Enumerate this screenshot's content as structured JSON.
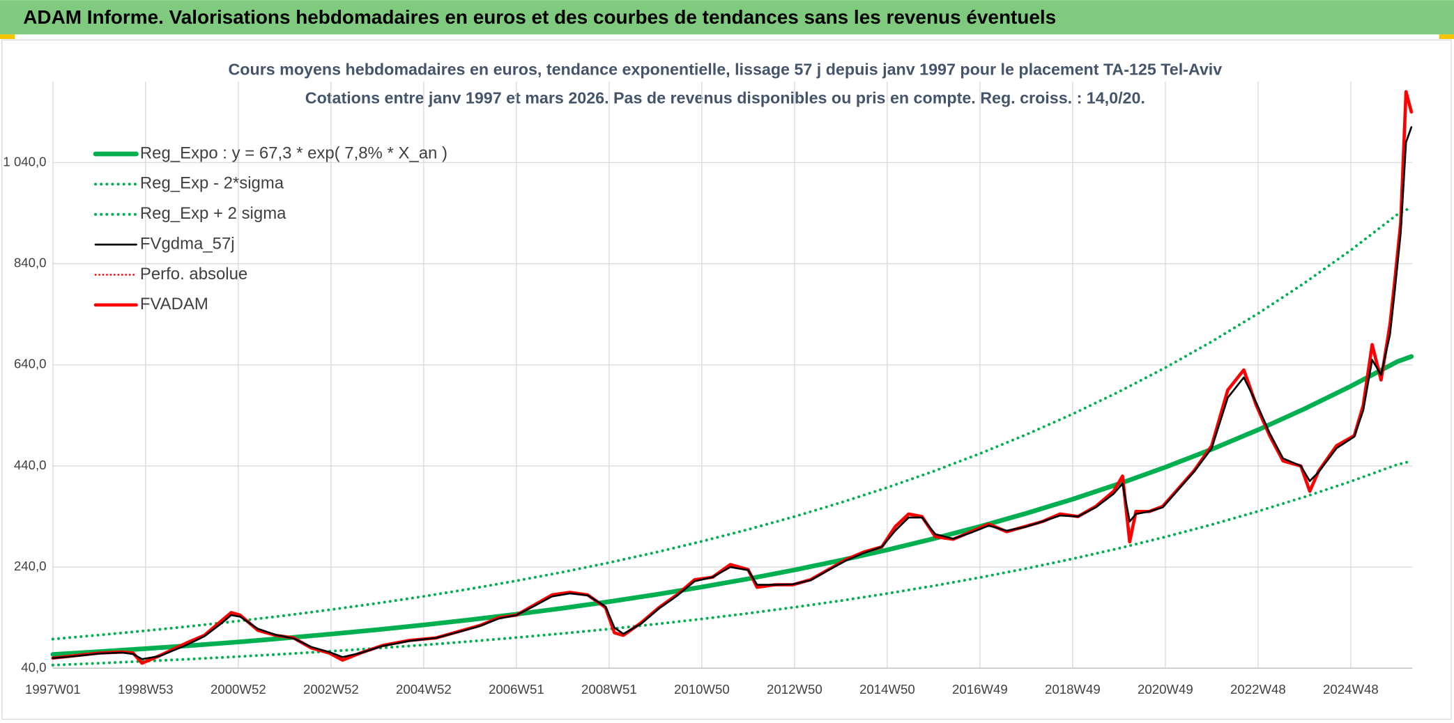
{
  "title": "ADAM Informe. Valorisations hebdomadaires en euros et des courbes de tendances sans les revenus éventuels",
  "chart_data": {
    "type": "line",
    "title": "Cours moyens hebdomadaires en euros, tendance exponentielle, lissage 57 j depuis janv 1997 pour le placement TA-125 Tel-Aviv",
    "subtitle": "Cotations entre janv 1997 et mars 2026. Pas de revenus disponibles ou pris en compte. Reg. croiss. : 14,0/20.",
    "xlim": [
      0,
      1525
    ],
    "xticks": [
      {
        "value": 0,
        "label": "1997W01"
      },
      {
        "value": 104,
        "label": "1998W53"
      },
      {
        "value": 208,
        "label": "2000W52"
      },
      {
        "value": 312,
        "label": "2002W52"
      },
      {
        "value": 416,
        "label": "2004W52"
      },
      {
        "value": 520,
        "label": "2006W51"
      },
      {
        "value": 624,
        "label": "2008W51"
      },
      {
        "value": 728,
        "label": "2010W50"
      },
      {
        "value": 832,
        "label": "2012W50"
      },
      {
        "value": 936,
        "label": "2014W50"
      },
      {
        "value": 1040,
        "label": "2016W49"
      },
      {
        "value": 1144,
        "label": "2018W49"
      },
      {
        "value": 1248,
        "label": "2020W49"
      },
      {
        "value": 1352,
        "label": "2022W48"
      },
      {
        "value": 1456,
        "label": "2024W48"
      }
    ],
    "ylim": [
      40,
      1200
    ],
    "yticks": [
      {
        "value": 40,
        "label": "40,0"
      },
      {
        "value": 240,
        "label": "240,0"
      },
      {
        "value": 440,
        "label": "440,0"
      },
      {
        "value": 640,
        "label": "640,0"
      },
      {
        "value": 840,
        "label": "840,0"
      },
      {
        "value": 1040,
        "label": "1 040,0"
      }
    ],
    "grid": true,
    "legend": "upper left",
    "series": [
      {
        "name": "Reg_Expo : y = 67,3 * exp( 7,8% *  X_an )",
        "color": "#00b050",
        "style": "solid",
        "width": 5,
        "x": [
          0,
          52,
          104,
          156,
          208,
          260,
          312,
          364,
          416,
          468,
          520,
          572,
          624,
          676,
          728,
          780,
          832,
          884,
          936,
          988,
          1040,
          1092,
          1144,
          1196,
          1248,
          1300,
          1352,
          1404,
          1456,
          1508,
          1524
        ],
        "values": [
          67.3,
          72.8,
          78.7,
          85.0,
          91.9,
          99.4,
          107.5,
          116.2,
          125.6,
          135.8,
          146.8,
          158.7,
          171.6,
          185.5,
          200.6,
          216.8,
          234.4,
          253.5,
          274.0,
          296.2,
          320.3,
          346.3,
          374.3,
          404.7,
          437.5,
          473.0,
          511.4,
          552.9,
          597.7,
          646.2,
          656.4
        ]
      },
      {
        "name": "Reg_Exp - 2*sigma",
        "color": "#00b050",
        "style": "dotted",
        "width": 3,
        "x": [
          0,
          52,
          104,
          156,
          208,
          260,
          312,
          364,
          416,
          468,
          520,
          572,
          624,
          676,
          728,
          780,
          832,
          884,
          936,
          988,
          1040,
          1092,
          1144,
          1196,
          1248,
          1300,
          1352,
          1404,
          1456,
          1508,
          1524
        ],
        "values": [
          46.1,
          49.9,
          53.9,
          58.2,
          63.0,
          68.1,
          73.6,
          79.6,
          86.0,
          93.0,
          100.6,
          108.7,
          117.5,
          127.1,
          137.4,
          148.5,
          160.6,
          173.6,
          187.7,
          202.9,
          219.4,
          237.2,
          256.4,
          277.2,
          299.7,
          324.0,
          350.3,
          378.7,
          409.4,
          442.6,
          449.6
        ]
      },
      {
        "name": "Reg_Exp + 2 sigma",
        "color": "#00b050",
        "style": "dotted",
        "width": 3,
        "x": [
          0,
          52,
          104,
          156,
          208,
          260,
          312,
          364,
          416,
          468,
          520,
          572,
          624,
          676,
          728,
          780,
          832,
          884,
          936,
          988,
          1040,
          1092,
          1144,
          1196,
          1248,
          1300,
          1352,
          1404,
          1456,
          1508,
          1524
        ],
        "values": [
          97.6,
          105.6,
          114.1,
          123.3,
          133.3,
          144.1,
          155.9,
          168.5,
          182.1,
          196.9,
          212.9,
          230.1,
          248.8,
          269.0,
          290.9,
          314.4,
          339.9,
          367.6,
          397.3,
          429.5,
          464.4,
          502.1,
          542.7,
          586.8,
          634.4,
          685.9,
          741.5,
          801.7,
          866.7,
          937.0,
          951.8
        ]
      },
      {
        "name": "FVgdma_57j",
        "color": "#000000",
        "style": "solid",
        "width": 2,
        "x": [
          0,
          26,
          52,
          78,
          90,
          100,
          120,
          150,
          170,
          190,
          200,
          210,
          230,
          250,
          270,
          290,
          310,
          325,
          345,
          370,
          400,
          430,
          460,
          480,
          500,
          520,
          540,
          560,
          580,
          600,
          620,
          630,
          640,
          660,
          680,
          700,
          720,
          740,
          760,
          780,
          790,
          810,
          830,
          850,
          870,
          890,
          910,
          930,
          945,
          960,
          975,
          990,
          1010,
          1030,
          1050,
          1070,
          1090,
          1110,
          1130,
          1150,
          1170,
          1190,
          1200,
          1208,
          1215,
          1230,
          1245,
          1260,
          1280,
          1300,
          1318,
          1336,
          1350,
          1365,
          1380,
          1400,
          1410,
          1420,
          1440,
          1460,
          1470,
          1480,
          1490,
          1500,
          1505,
          1512,
          1518,
          1524
        ],
        "values": [
          60,
          64,
          69,
          71,
          68,
          58,
          64,
          86,
          103,
          130,
          145,
          142,
          118,
          106,
          99,
          82,
          72,
          62,
          70,
          84,
          94,
          100,
          114,
          124,
          138,
          145,
          163,
          182,
          188,
          184,
          162,
          120,
          108,
          128,
          158,
          183,
          212,
          220,
          240,
          234,
          205,
          205,
          206,
          214,
          234,
          253,
          268,
          280,
          312,
          338,
          338,
          305,
          296,
          308,
          322,
          312,
          319,
          330,
          342,
          340,
          358,
          385,
          405,
          330,
          345,
          350,
          358,
          388,
          428,
          475,
          575,
          615,
          565,
          505,
          455,
          440,
          410,
          428,
          475,
          498,
          550,
          650,
          620,
          700,
          780,
          900,
          1080,
          1110
        ]
      },
      {
        "name": "Perfo. absolue",
        "color": "#ff0000",
        "style": "dotted",
        "width": 2
      },
      {
        "name": "FVADAM",
        "color": "#ff0000",
        "style": "solid",
        "width": 3.5,
        "x": [
          0,
          26,
          52,
          78,
          90,
          100,
          120,
          150,
          170,
          190,
          200,
          210,
          230,
          250,
          270,
          290,
          310,
          325,
          345,
          370,
          400,
          430,
          460,
          480,
          500,
          520,
          540,
          560,
          580,
          600,
          620,
          630,
          640,
          660,
          680,
          700,
          720,
          740,
          760,
          780,
          790,
          810,
          830,
          850,
          870,
          890,
          910,
          930,
          945,
          960,
          975,
          990,
          1010,
          1030,
          1050,
          1070,
          1090,
          1110,
          1130,
          1150,
          1170,
          1190,
          1200,
          1208,
          1215,
          1230,
          1245,
          1260,
          1280,
          1300,
          1318,
          1336,
          1350,
          1365,
          1380,
          1400,
          1410,
          1420,
          1440,
          1460,
          1470,
          1480,
          1490,
          1500,
          1505,
          1512,
          1518,
          1524
        ],
        "values": [
          60,
          65,
          70,
          72,
          70,
          50,
          65,
          90,
          105,
          135,
          150,
          145,
          115,
          105,
          100,
          80,
          70,
          56,
          70,
          85,
          95,
          100,
          115,
          125,
          140,
          145,
          165,
          185,
          190,
          185,
          160,
          110,
          105,
          130,
          160,
          185,
          215,
          220,
          245,
          235,
          200,
          205,
          205,
          215,
          235,
          255,
          270,
          280,
          320,
          345,
          340,
          300,
          295,
          310,
          325,
          310,
          320,
          330,
          345,
          340,
          360,
          390,
          420,
          290,
          350,
          350,
          360,
          390,
          430,
          480,
          590,
          630,
          560,
          500,
          450,
          440,
          390,
          430,
          480,
          500,
          560,
          680,
          610,
          720,
          800,
          920,
          1180,
          1140
        ]
      }
    ]
  }
}
